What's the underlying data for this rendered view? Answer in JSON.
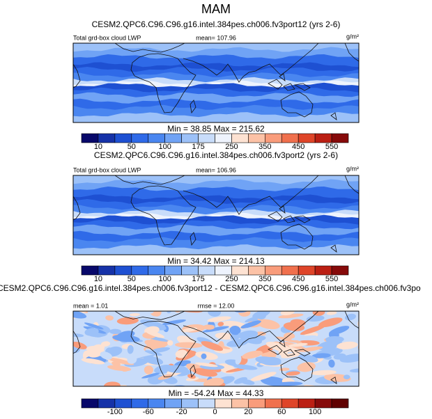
{
  "title": "MAM",
  "panels": [
    {
      "subtitle": "CESM2.QPC6.C96.C96.g16.intel.384pes.ch006.fv3port12 (yrs 2-6)",
      "left": "Total grd-box cloud LWP",
      "center": "mean= 107.96",
      "units": "g/m²",
      "minmax": "Min =  38.85 Max = 215.62",
      "field": "lwp",
      "colorbar": {
        "labels": [
          "10",
          "50",
          "100",
          "175",
          "250",
          "350",
          "450",
          "550"
        ],
        "label_every": 2,
        "label_start": 1,
        "colors": [
          "#08086a",
          "#1632a8",
          "#1e50d2",
          "#2f6ae8",
          "#4a86f0",
          "#70a3f5",
          "#9cc1f8",
          "#c8dcfa",
          "#eef3fd",
          "#fde2d2",
          "#fcc2a6",
          "#f99c7b",
          "#f0704d",
          "#df4529",
          "#bb1f13",
          "#860a0a"
        ]
      }
    },
    {
      "subtitle": "CESM2.QPC6.C96.C96.g16.intel.384pes.ch006.fv3port2 (yrs 2-6)",
      "left": "Total grd-box cloud LWP",
      "center": "mean= 106.96",
      "units": "g/m²",
      "minmax": "Min =  34.42 Max = 214.13",
      "field": "lwp",
      "colorbar": {
        "labels": [
          "10",
          "50",
          "100",
          "175",
          "250",
          "350",
          "450",
          "550"
        ],
        "label_every": 2,
        "label_start": 1,
        "colors": [
          "#08086a",
          "#1632a8",
          "#1e50d2",
          "#2f6ae8",
          "#4a86f0",
          "#70a3f5",
          "#9cc1f8",
          "#c8dcfa",
          "#eef3fd",
          "#fde2d2",
          "#fcc2a6",
          "#f99c7b",
          "#f0704d",
          "#df4529",
          "#bb1f13",
          "#860a0a"
        ]
      }
    },
    {
      "subtitle": "CESM2.QPC6.C96.C96.g16.intel.384pes.ch006.fv3port12 - CESM2.QPC6.C96.C96.g16.intel.384pes.ch006.fv3po",
      "left": "mean =  1.01",
      "center": "rmse = 12.00",
      "units": "g/m²",
      "minmax": "Min = -54.24 Max = 44.33",
      "field": "diff",
      "colorbar": {
        "labels": [
          "-100",
          "-60",
          "-20",
          "0",
          "20",
          "60",
          "100"
        ],
        "label_every": 2,
        "label_start": 2,
        "colors": [
          "#08086a",
          "#1632a8",
          "#1e50d2",
          "#2f6ae8",
          "#4a86f0",
          "#70a3f5",
          "#9cc1f8",
          "#c8dcfa",
          "#fde2d2",
          "#fcc2a6",
          "#f99c7b",
          "#f0704d",
          "#df4529",
          "#bb1f13",
          "#860a0a",
          "#600000"
        ]
      }
    }
  ]
}
